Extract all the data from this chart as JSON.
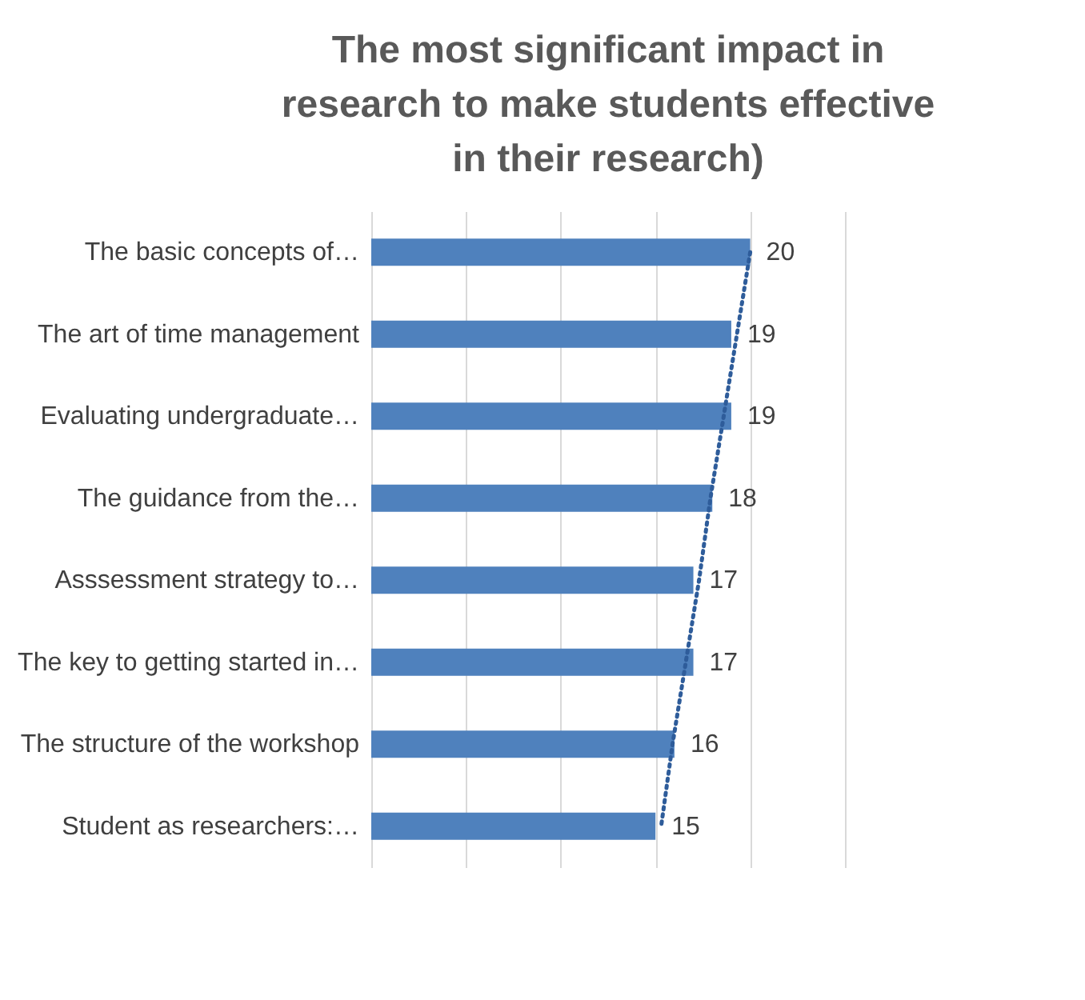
{
  "chart_data": {
    "type": "bar",
    "orientation": "horizontal",
    "title": "The most significant impact in research to make students effective in their research)",
    "categories": [
      "The basic concepts of…",
      "The art of time management",
      "Evaluating undergraduate…",
      "The guidance from the…",
      "Asssessment strategy to…",
      "The key to getting started in…",
      "The structure of the workshop",
      "Student as researchers:…"
    ],
    "series": [
      {
        "color": "#4f81bd",
        "values": [
          20,
          19,
          19,
          18,
          17,
          17,
          16,
          15
        ],
        "value_labels": [
          "20",
          "19",
          "19",
          "18",
          "17",
          "17",
          "16",
          "15"
        ]
      },
      {
        "type": "line",
        "color": "#2e5c9a",
        "line_style": "dotted",
        "values": [
          20.0,
          19.3,
          18.6,
          17.9,
          17.3,
          16.6,
          15.9,
          15.3
        ]
      }
    ],
    "xlim": [
      0,
      25
    ],
    "xticks": [
      {
        "value": 0,
        "label": null
      },
      {
        "value": 5,
        "label": null
      },
      {
        "value": 10,
        "label": null
      },
      {
        "value": 15,
        "label": null
      },
      {
        "value": 20,
        "label": null
      },
      {
        "value": 25,
        "label": null
      }
    ],
    "grid": "x",
    "tick_labels": "y"
  }
}
